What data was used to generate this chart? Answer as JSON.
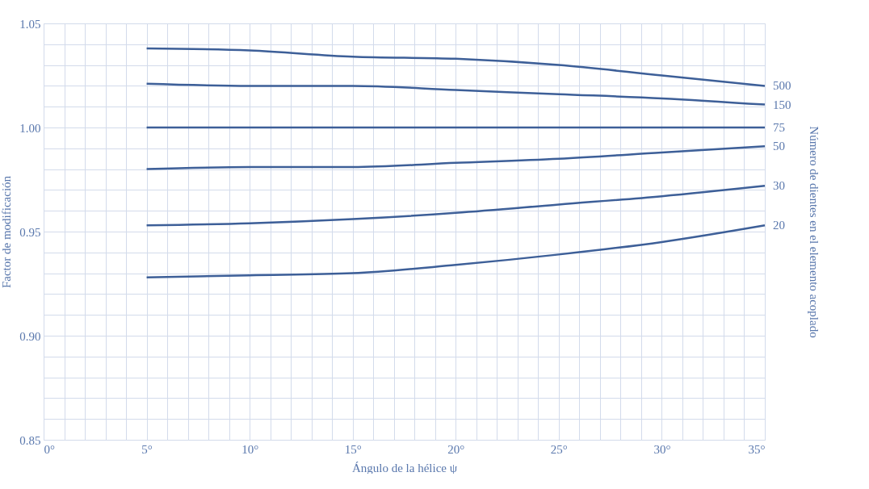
{
  "chart_data": {
    "type": "line",
    "xlabel": "Ángulo de la hélice ψ",
    "ylabel": "Factor de modificación",
    "y2label": "Número de dientes en el elemento acoplado",
    "x": [
      5,
      10,
      15,
      20,
      25,
      30,
      35
    ],
    "series": [
      {
        "name": "500",
        "color": "#3d5f98",
        "values": [
          1.038,
          1.037,
          1.034,
          1.033,
          1.03,
          1.025,
          1.02
        ]
      },
      {
        "name": "150",
        "color": "#3d5f98",
        "values": [
          1.021,
          1.02,
          1.02,
          1.018,
          1.016,
          1.014,
          1.011
        ]
      },
      {
        "name": "75",
        "color": "#3d5f98",
        "values": [
          1.0,
          1.0,
          1.0,
          1.0,
          1.0,
          1.0,
          1.0
        ]
      },
      {
        "name": "50",
        "color": "#3d5f98",
        "values": [
          0.98,
          0.981,
          0.981,
          0.983,
          0.985,
          0.988,
          0.991
        ]
      },
      {
        "name": "30",
        "color": "#3d5f98",
        "values": [
          0.953,
          0.954,
          0.956,
          0.959,
          0.963,
          0.967,
          0.972
        ]
      },
      {
        "name": "20",
        "color": "#3d5f98",
        "values": [
          0.928,
          0.929,
          0.93,
          0.934,
          0.939,
          0.945,
          0.953
        ]
      }
    ],
    "xlim": [
      0,
      35
    ],
    "xticks": [
      {
        "value": 0,
        "label": "0°"
      },
      {
        "value": 1,
        "label": null
      },
      {
        "value": 2,
        "label": null
      },
      {
        "value": 3,
        "label": null
      },
      {
        "value": 4,
        "label": null
      },
      {
        "value": 5,
        "label": "5°"
      },
      {
        "value": 6,
        "label": null
      },
      {
        "value": 7,
        "label": null
      },
      {
        "value": 8,
        "label": null
      },
      {
        "value": 9,
        "label": null
      },
      {
        "value": 10,
        "label": "10°"
      },
      {
        "value": 11,
        "label": null
      },
      {
        "value": 12,
        "label": null
      },
      {
        "value": 13,
        "label": null
      },
      {
        "value": 14,
        "label": null
      },
      {
        "value": 15,
        "label": "15°"
      },
      {
        "value": 16,
        "label": null
      },
      {
        "value": 17,
        "label": null
      },
      {
        "value": 18,
        "label": null
      },
      {
        "value": 19,
        "label": null
      },
      {
        "value": 20,
        "label": "20°"
      },
      {
        "value": 21,
        "label": null
      },
      {
        "value": 22,
        "label": null
      },
      {
        "value": 23,
        "label": null
      },
      {
        "value": 24,
        "label": null
      },
      {
        "value": 25,
        "label": "25°"
      },
      {
        "value": 26,
        "label": null
      },
      {
        "value": 27,
        "label": null
      },
      {
        "value": 28,
        "label": null
      },
      {
        "value": 29,
        "label": null
      },
      {
        "value": 30,
        "label": "30°"
      },
      {
        "value": 31,
        "label": null
      },
      {
        "value": 32,
        "label": null
      },
      {
        "value": 33,
        "label": null
      },
      {
        "value": 34,
        "label": null
      },
      {
        "value": 35,
        "label": "35°"
      }
    ],
    "ylim": [
      0.85,
      1.05
    ],
    "yticks": [
      {
        "value": 0.85,
        "label": "0.85"
      },
      {
        "value": 0.86,
        "label": null
      },
      {
        "value": 0.87,
        "label": null
      },
      {
        "value": 0.88,
        "label": null
      },
      {
        "value": 0.89,
        "label": null
      },
      {
        "value": 0.9,
        "label": "0.90"
      },
      {
        "value": 0.91,
        "label": null
      },
      {
        "value": 0.92,
        "label": null
      },
      {
        "value": 0.93,
        "label": null
      },
      {
        "value": 0.94,
        "label": null
      },
      {
        "value": 0.95,
        "label": "0.95"
      },
      {
        "value": 0.96,
        "label": null
      },
      {
        "value": 0.97,
        "label": null
      },
      {
        "value": 0.98,
        "label": null
      },
      {
        "value": 0.99,
        "label": null
      },
      {
        "value": 1.0,
        "label": "1.00"
      },
      {
        "value": 1.01,
        "label": null
      },
      {
        "value": 1.02,
        "label": null
      },
      {
        "value": 1.03,
        "label": null
      },
      {
        "value": 1.04,
        "label": null
      },
      {
        "value": 1.05,
        "label": "1.05"
      }
    ],
    "grid": true,
    "marker": "none",
    "line_style": "solid",
    "legend": false
  }
}
